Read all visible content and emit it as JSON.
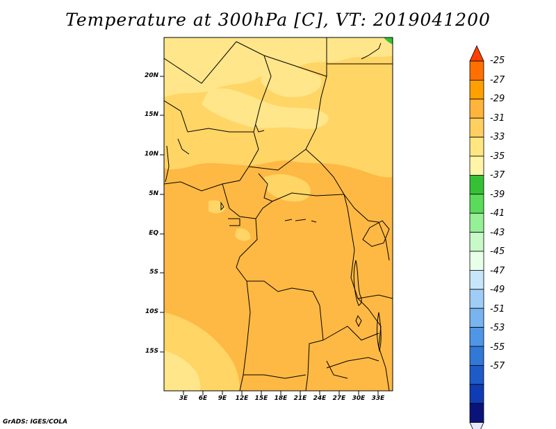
{
  "title": "Temperature at 300hPa [C], VT: 2019041200",
  "credit": "GrADS: IGES/COLA",
  "map": {
    "lat_labels": [
      "20N",
      "15N",
      "10N",
      "5N",
      "EQ",
      "5S",
      "10S",
      "15S"
    ],
    "lon_labels": [
      "3E",
      "6E",
      "9E",
      "12E",
      "15E",
      "18E",
      "21E",
      "24E",
      "27E",
      "30E",
      "33E"
    ]
  },
  "colorbar": {
    "labels": [
      "-25",
      "-27",
      "-29",
      "-31",
      "-33",
      "-35",
      "-37",
      "-39",
      "-41",
      "-43",
      "-45",
      "-47",
      "-49",
      "-51",
      "-53",
      "-55",
      "-57"
    ],
    "colors": [
      "#ff4000",
      "#ff7000",
      "#ffa000",
      "#ffb43c",
      "#ffd060",
      "#ffe680",
      "#fff4a8",
      "#36c036",
      "#5adc5a",
      "#96f096",
      "#c8fac8",
      "#e8ffe8",
      "#c8e6fa",
      "#a0cdf5",
      "#78b4f0",
      "#4f96e6",
      "#3278d7",
      "#1e5ac8",
      "#0f3cb4",
      "#0a1478",
      "#e6e6ff"
    ]
  }
}
